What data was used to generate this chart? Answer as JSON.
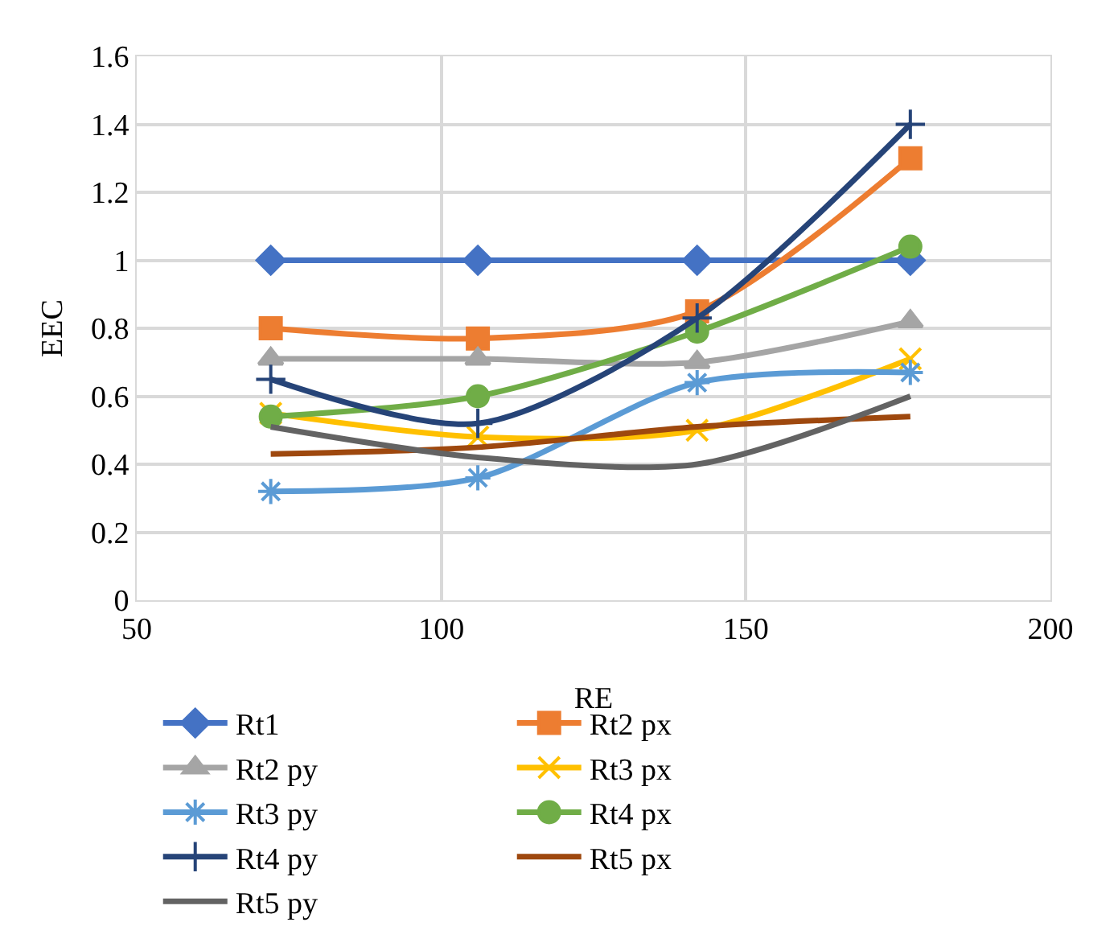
{
  "chart_data": {
    "type": "line",
    "xlabel": "RE",
    "ylabel": "EEC",
    "x": [
      72,
      106,
      142,
      177
    ],
    "xlim": [
      50,
      200
    ],
    "xticks": [
      50,
      100,
      150,
      200
    ],
    "ylim": [
      0,
      1.6
    ],
    "yticks": [
      0,
      0.2,
      0.4,
      0.6,
      0.8,
      1,
      1.2,
      1.4,
      1.6
    ],
    "grid": true,
    "legend": "bottom",
    "line_style": "solid",
    "series": [
      {
        "name": "Rt1",
        "color": "#4472c4",
        "marker": "diamond",
        "values": [
          1,
          1,
          1,
          1
        ]
      },
      {
        "name": "Rt2 px",
        "color": "#ed7d31",
        "marker": "square",
        "values": [
          0.8,
          0.77,
          0.85,
          1.3
        ]
      },
      {
        "name": "Rt2 py",
        "color": "#a5a5a5",
        "marker": "triangle",
        "values": [
          0.71,
          0.71,
          0.7,
          0.82
        ]
      },
      {
        "name": "Rt3 px",
        "color": "#ffc000",
        "marker": "cross",
        "values": [
          0.55,
          0.48,
          0.5,
          0.71
        ]
      },
      {
        "name": "Rt3 py",
        "color": "#5b9bd5",
        "marker": "cross",
        "values": [
          0.32,
          0.36,
          0.64,
          0.67
        ]
      },
      {
        "name": "Rt4 px",
        "color": "#70ad47",
        "marker": "circle",
        "values": [
          0.54,
          0.6,
          0.79,
          1.04
        ]
      },
      {
        "name": "Rt4 py",
        "color": "#264478",
        "marker": "cross",
        "values": [
          0.65,
          0.52,
          0.83,
          1.4
        ]
      },
      {
        "name": "Rt5 px",
        "color": "#9e480e",
        "marker": "none",
        "values": [
          0.43,
          0.45,
          0.51,
          0.54
        ]
      },
      {
        "name": "Rt5 py",
        "color": "#636363",
        "marker": "none",
        "values": [
          0.51,
          0.42,
          0.4,
          0.6
        ]
      }
    ]
  }
}
